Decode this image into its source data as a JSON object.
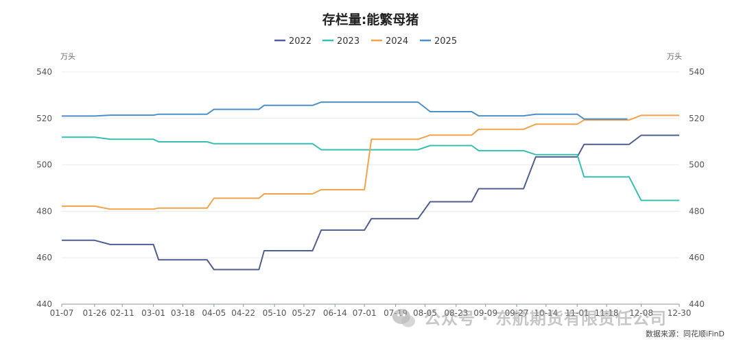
{
  "chart_data": {
    "type": "line",
    "title": "存栏量:能繁母猪",
    "unit_left": "万头",
    "unit_right": "万头",
    "ylim": [
      440,
      540
    ],
    "yticks": [
      440,
      460,
      480,
      500,
      520,
      540
    ],
    "grid": true,
    "legend_position": "top",
    "categories": [
      "01-07",
      "01-26",
      "02-11",
      "03-01",
      "03-18",
      "04-05",
      "04-22",
      "05-10",
      "05-27",
      "06-14",
      "07-01",
      "07-19",
      "08-05",
      "08-23",
      "09-09",
      "09-27",
      "10-14",
      "11-01",
      "11-18",
      "12-08",
      "12-30"
    ],
    "series": [
      {
        "name": "2022",
        "color": "#4f5d8f",
        "x": [
          "01-07",
          "01-26",
          "02-04",
          "03-01",
          "03-04",
          "04-01",
          "04-05",
          "05-01",
          "05-04",
          "06-01",
          "06-06",
          "07-01",
          "07-05",
          "08-01",
          "08-08",
          "09-01",
          "09-05",
          "10-01",
          "10-08",
          "11-01",
          "11-05",
          "12-01",
          "12-08",
          "12-30"
        ],
        "values": [
          467.5,
          467.5,
          465.7,
          465.7,
          459.1,
          459.1,
          454.9,
          454.9,
          463.0,
          463.0,
          471.9,
          471.9,
          476.8,
          476.8,
          484.1,
          484.1,
          489.7,
          489.7,
          503.4,
          503.4,
          508.8,
          508.8,
          512.7,
          512.7
        ]
      },
      {
        "name": "2023",
        "color": "#36bfb0",
        "x": [
          "01-07",
          "01-26",
          "02-04",
          "03-01",
          "03-04",
          "04-01",
          "04-05",
          "05-01",
          "05-04",
          "06-01",
          "06-06",
          "07-01",
          "07-05",
          "08-01",
          "08-08",
          "09-01",
          "09-05",
          "10-01",
          "10-08",
          "11-01",
          "11-05",
          "12-01",
          "12-08",
          "12-30"
        ],
        "values": [
          511.9,
          511.9,
          511.0,
          511.0,
          509.9,
          509.9,
          509.1,
          509.1,
          509.1,
          509.1,
          506.5,
          506.5,
          506.5,
          506.5,
          508.3,
          508.3,
          506.1,
          506.1,
          504.4,
          504.4,
          494.8,
          494.8,
          484.7,
          484.7
        ]
      },
      {
        "name": "2024",
        "color": "#f0a34a",
        "x": [
          "01-07",
          "01-26",
          "02-04",
          "03-01",
          "03-04",
          "04-01",
          "04-05",
          "05-01",
          "05-04",
          "06-01",
          "06-06",
          "07-01",
          "07-05",
          "08-01",
          "08-08",
          "09-01",
          "09-05",
          "10-01",
          "10-08",
          "11-01",
          "11-05",
          "12-01",
          "12-08",
          "12-30"
        ],
        "values": [
          482.2,
          482.2,
          480.9,
          480.9,
          481.4,
          481.4,
          485.6,
          485.6,
          487.5,
          487.5,
          489.3,
          489.3,
          511.0,
          511.0,
          512.8,
          512.8,
          515.3,
          515.3,
          517.5,
          517.5,
          519.3,
          519.3,
          521.3,
          521.3
        ]
      },
      {
        "name": "2025",
        "color": "#4e8ec7",
        "x": [
          "01-07",
          "01-26",
          "02-04",
          "03-01",
          "03-04",
          "04-01",
          "04-05",
          "05-01",
          "05-04",
          "06-01",
          "06-06",
          "07-01",
          "07-05",
          "08-01",
          "08-08",
          "09-01",
          "09-05",
          "10-01",
          "10-08",
          "11-01",
          "11-05",
          "11-30"
        ],
        "values": [
          521.0,
          521.0,
          521.4,
          521.4,
          521.8,
          521.8,
          523.9,
          523.9,
          525.6,
          525.6,
          527.0,
          527.0,
          527.0,
          527.0,
          522.9,
          522.9,
          521.1,
          521.1,
          521.8,
          521.8,
          519.7,
          519.7
        ]
      }
    ]
  },
  "watermark": "公众号 · 东航期货有限责任公司",
  "source_text": "数据来源：同花顺iFinD"
}
